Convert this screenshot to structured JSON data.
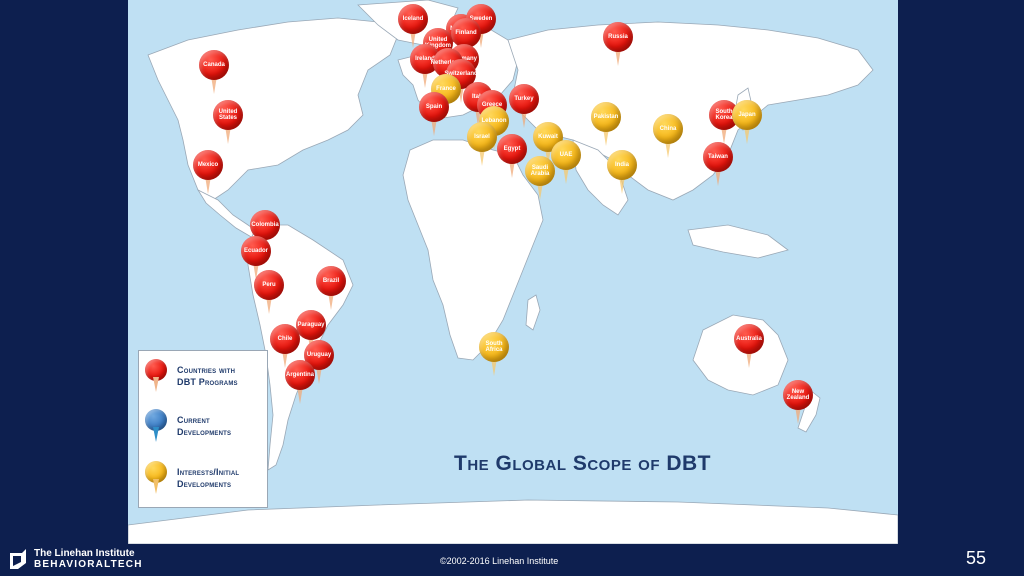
{
  "slide": {
    "title": "The Global Scope of DBT",
    "copyright": "©2002-2016 Linehan Institute",
    "page_number": "55",
    "logo_line1": "The Linehan Institute",
    "logo_line2": "BEHAVIORALTECH"
  },
  "legend": {
    "items": [
      {
        "color": "red",
        "line1": "Countries with",
        "line2": "DBT Programs"
      },
      {
        "color": "blue",
        "line1": "Current",
        "line2": "Developments"
      },
      {
        "color": "yellow",
        "line1": "Interests/Initial",
        "line2": "Developments"
      }
    ]
  },
  "pins": [
    {
      "label": "Iceland",
      "color": "red"
    },
    {
      "label": "Norway",
      "color": "red"
    },
    {
      "label": "Sweden",
      "color": "red"
    },
    {
      "label": "United Kingdom",
      "color": "red"
    },
    {
      "label": "Finland",
      "color": "red"
    },
    {
      "label": "Ireland",
      "color": "red"
    },
    {
      "label": "Germany",
      "color": "red"
    },
    {
      "label": "Netherlands",
      "color": "red"
    },
    {
      "label": "Switzerland",
      "color": "red"
    },
    {
      "label": "France",
      "color": "yellow"
    },
    {
      "label": "Spain",
      "color": "red"
    },
    {
      "label": "Italy",
      "color": "red"
    },
    {
      "label": "Greece",
      "color": "red"
    },
    {
      "label": "Turkey",
      "color": "red"
    },
    {
      "label": "Lebanon",
      "color": "yellow"
    },
    {
      "label": "Israel",
      "color": "yellow"
    },
    {
      "label": "Kuwait",
      "color": "yellow"
    },
    {
      "label": "Egypt",
      "color": "red"
    },
    {
      "label": "UAE",
      "color": "yellow"
    },
    {
      "label": "Saudi Arabia",
      "color": "yellow"
    },
    {
      "label": "Pakistan",
      "color": "yellow"
    },
    {
      "label": "China",
      "color": "yellow"
    },
    {
      "label": "India",
      "color": "yellow"
    },
    {
      "label": "South Korea",
      "color": "red"
    },
    {
      "label": "Japan",
      "color": "yellow"
    },
    {
      "label": "Taiwan",
      "color": "red"
    },
    {
      "label": "Russia",
      "color": "red"
    },
    {
      "label": "Canada",
      "color": "red"
    },
    {
      "label": "United States",
      "color": "red"
    },
    {
      "label": "Mexico",
      "color": "red"
    },
    {
      "label": "Colombia",
      "color": "red"
    },
    {
      "label": "Ecuador",
      "color": "red"
    },
    {
      "label": "Peru",
      "color": "red"
    },
    {
      "label": "Brazil",
      "color": "red"
    },
    {
      "label": "Paraguay",
      "color": "red"
    },
    {
      "label": "Chile",
      "color": "red"
    },
    {
      "label": "Uruguay",
      "color": "red"
    },
    {
      "label": "Argentina",
      "color": "red"
    },
    {
      "label": "South Africa",
      "color": "yellow"
    },
    {
      "label": "Australia",
      "color": "red"
    },
    {
      "label": "New Zealand",
      "color": "red"
    }
  ]
}
